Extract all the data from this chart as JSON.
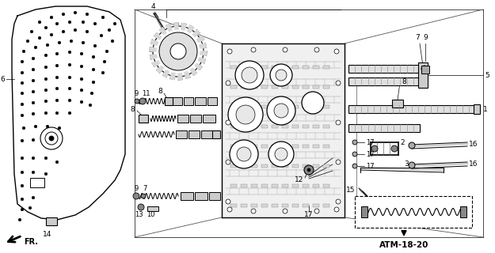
{
  "bg_color": "#ffffff",
  "line_color": "#000000",
  "atm_label": "ATM-18-20"
}
